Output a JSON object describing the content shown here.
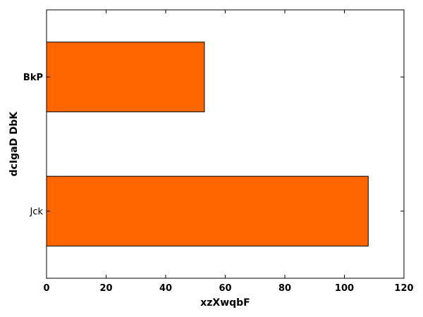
{
  "chart_data": {
    "type": "bar",
    "orientation": "horizontal",
    "categories": [
      "Jck",
      "BkP"
    ],
    "values": [
      108,
      53
    ],
    "xlabel": "xzXwqbF",
    "ylabel": "dcIgaD DbK",
    "xlim": [
      0,
      120
    ],
    "xticks": [
      0,
      20,
      40,
      60,
      80,
      100,
      120
    ],
    "bar_color": "#ff6600",
    "edge_color": "#000000",
    "grid": false,
    "legend": "none"
  }
}
